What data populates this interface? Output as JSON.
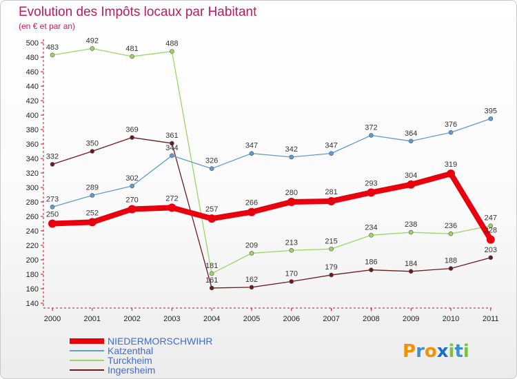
{
  "chart_data": {
    "type": "line",
    "title": "Evolution des Impôts locaux par Habitant",
    "subtitle": "(en € et par an)",
    "categories": [
      "2000",
      "2001",
      "2002",
      "2003",
      "2004",
      "2005",
      "2006",
      "2007",
      "2008",
      "2009",
      "2010",
      "2011"
    ],
    "ylim": [
      140,
      500
    ],
    "yticks": [
      140,
      160,
      180,
      200,
      220,
      240,
      260,
      280,
      300,
      320,
      340,
      360,
      380,
      400,
      420,
      440,
      460,
      480,
      500
    ],
    "grid": false,
    "legend_position": "bottom-left",
    "series": [
      {
        "name": "Turckheim",
        "color": "#9ad565",
        "values": [
          483,
          492,
          481,
          488,
          181,
          209,
          213,
          215,
          234,
          238,
          236,
          247
        ]
      },
      {
        "name": "Ingersheim",
        "color": "#6b1a1e",
        "values": [
          332,
          350,
          369,
          361,
          161,
          162,
          170,
          179,
          186,
          184,
          188,
          203
        ]
      },
      {
        "name": "Katzenthal",
        "color": "#5f9bd1",
        "values": [
          273,
          289,
          302,
          344,
          326,
          347,
          342,
          347,
          372,
          364,
          376,
          395
        ]
      },
      {
        "name": "NIEDERMORSCHWIHR",
        "color": "#e8000e",
        "values": [
          250,
          252,
          270,
          272,
          257,
          266,
          280,
          281,
          293,
          304,
          319,
          228
        ]
      }
    ],
    "legend": [
      "NIEDERMORSCHWIHR",
      "Katzenthal",
      "Turckheim",
      "Ingersheim"
    ]
  },
  "brand": {
    "letters": [
      "P",
      "r",
      "o",
      "x",
      "i",
      "t",
      "i"
    ],
    "colors": [
      "#f39200",
      "#3d8fd1",
      "#f39200",
      "#1a6fc4",
      "#7cc242",
      "#3d8fd1",
      "#7cc242"
    ]
  }
}
